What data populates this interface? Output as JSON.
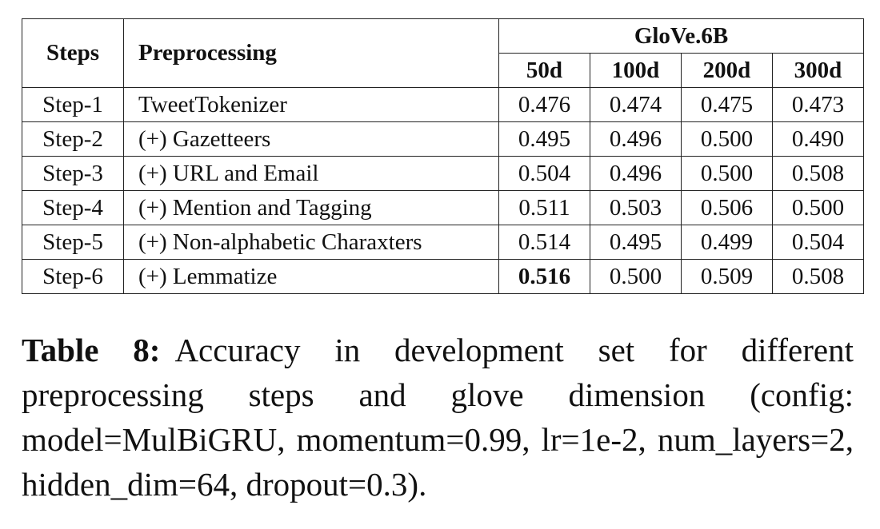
{
  "table": {
    "headers": {
      "steps": "Steps",
      "preprocessing": "Preprocessing",
      "group": "GloVe.6B",
      "dims": [
        "50d",
        "100d",
        "200d",
        "300d"
      ]
    },
    "rows": [
      {
        "step": "Step-1",
        "prep": "TweetTokenizer",
        "values": [
          "0.476",
          "0.474",
          "0.475",
          "0.473"
        ]
      },
      {
        "step": "Step-2",
        "prep": "(+) Gazetteers",
        "values": [
          "0.495",
          "0.496",
          "0.500",
          "0.490"
        ]
      },
      {
        "step": "Step-3",
        "prep": "(+) URL and Email",
        "values": [
          "0.504",
          "0.496",
          "0.500",
          "0.508"
        ]
      },
      {
        "step": "Step-4",
        "prep": "(+) Mention and Tagging",
        "values": [
          "0.511",
          "0.503",
          "0.506",
          "0.500"
        ]
      },
      {
        "step": "Step-5",
        "prep": "(+) Non-alphabetic Charaxters",
        "values": [
          "0.514",
          "0.495",
          "0.499",
          "0.504"
        ]
      },
      {
        "step": "Step-6",
        "prep": "(+) Lemmatize",
        "values": [
          "0.516",
          "0.500",
          "0.509",
          "0.508"
        ]
      }
    ],
    "bold_cell": {
      "row": 5,
      "col": 0
    }
  },
  "caption": {
    "label": "Table 8:",
    "text": "Accuracy in development set for different preprocessing steps and glove dimension (config: model=MulBiGRU, momentum=0.99, lr=1e-2, num_layers=2, hidden_dim=64, dropout=0.3)."
  }
}
